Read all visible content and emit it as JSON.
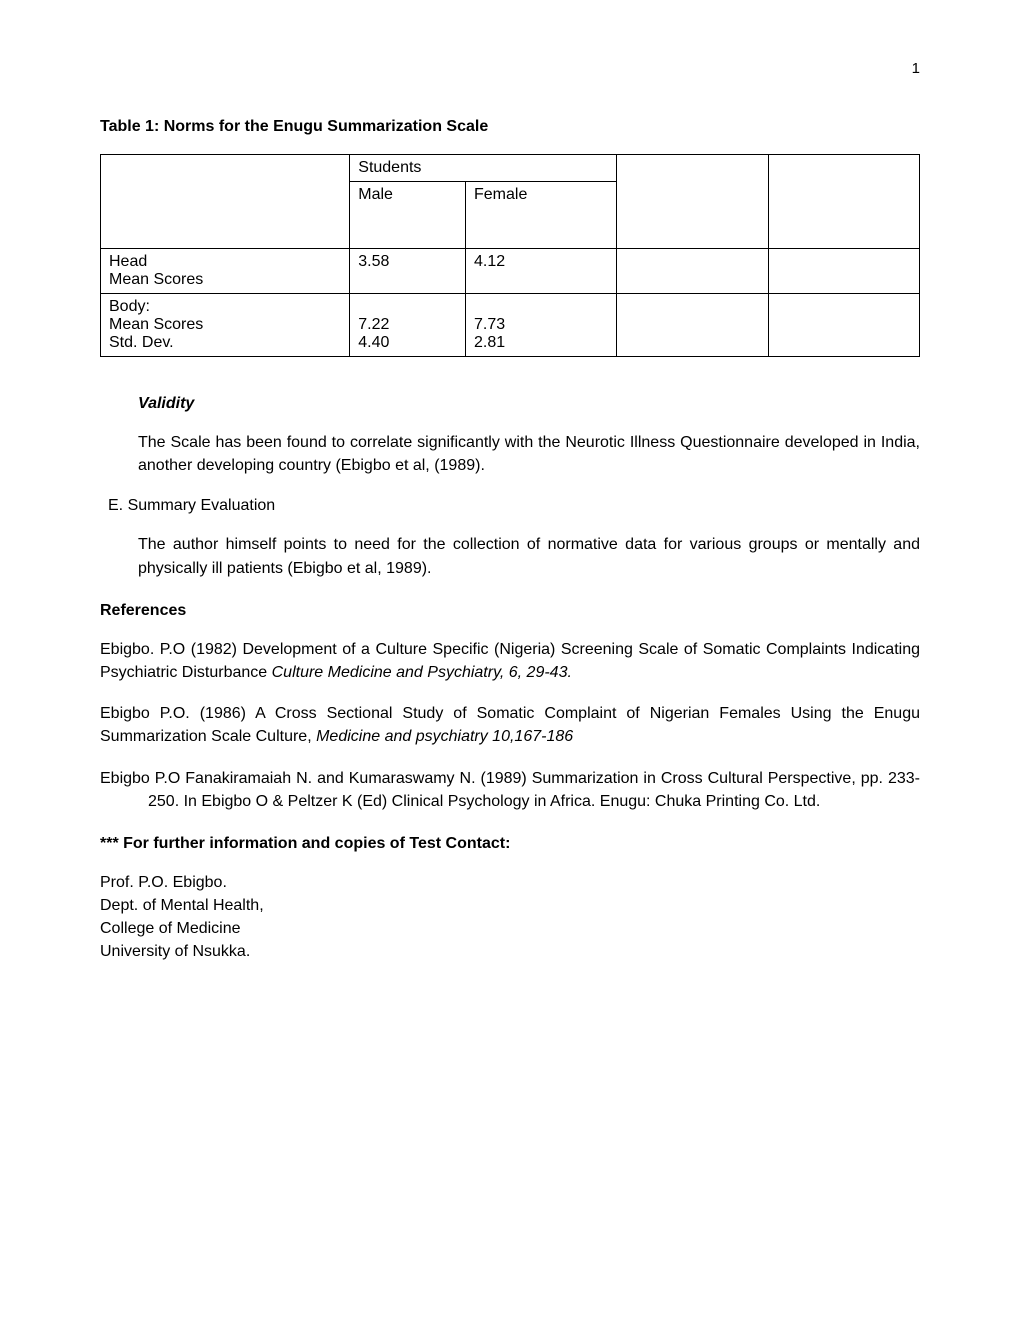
{
  "page_number": "1",
  "table": {
    "title": "Table 1: Norms for the Enugu Summarization Scale",
    "header_group": "Students",
    "subheaders": {
      "male": "Male",
      "female": "Female"
    },
    "rows": [
      {
        "label_lines": [
          "Head",
          "Mean Scores"
        ],
        "male": "3.58",
        "female": "4.12"
      },
      {
        "label_lines": [
          "Body:",
          "Mean Scores",
          "Std. Dev."
        ],
        "male_lines": [
          "",
          "7.22",
          "4.40"
        ],
        "female_lines": [
          "",
          "7.73",
          "2.81"
        ]
      }
    ],
    "border_color": "#000000",
    "font_size": 16
  },
  "validity": {
    "heading": "Validity",
    "text": "The Scale has been found to correlate significantly with the Neurotic Illness Questionnaire developed in India, another developing country (Ebigbo et al, (1989)."
  },
  "section_e": {
    "label": "E. Summary Evaluation",
    "text": "The author himself points to need for the collection of normative data for various groups or mentally and physically ill patients (Ebigbo et al, 1989)."
  },
  "references": {
    "heading": "References",
    "items": [
      {
        "pre": "Ebigbo. P.O (1982) Development of a Culture Specific (Nigeria) Screening Scale of Somatic Complaints Indicating Psychiatric Disturbance ",
        "italic": "Culture Medicine and Psychiatry, 6, 29-43.",
        "post": ""
      },
      {
        "pre": "Ebigbo P.O. (1986) A Cross Sectional Study of Somatic Complaint of Nigerian Females Using the Enugu Summarization Scale Culture, ",
        "italic": "Medicine and psychiatry 10,167-186",
        "post": ""
      },
      {
        "pre": "Ebigbo P.O Fanakiramaiah N. and Kumaraswamy N. (1989) Summarization in Cross Cultural Perspective, pp. 233-250. In Ebigbo O & Peltzer K (Ed) Clinical Psychology in Africa. Enugu: Chuka Printing Co. Ltd.",
        "italic": "",
        "post": ""
      }
    ]
  },
  "contact": {
    "heading": "*** For further information and copies of Test Contact:",
    "lines": [
      "Prof. P.O. Ebigbo.",
      "Dept. of Mental Health,",
      "College of Medicine",
      "University of Nsukka."
    ]
  },
  "styles": {
    "background": "#ffffff",
    "text_color": "#000000",
    "font_family": "Verdana, Geneva, sans-serif",
    "base_font_size": 16,
    "bold_weight": 700
  }
}
